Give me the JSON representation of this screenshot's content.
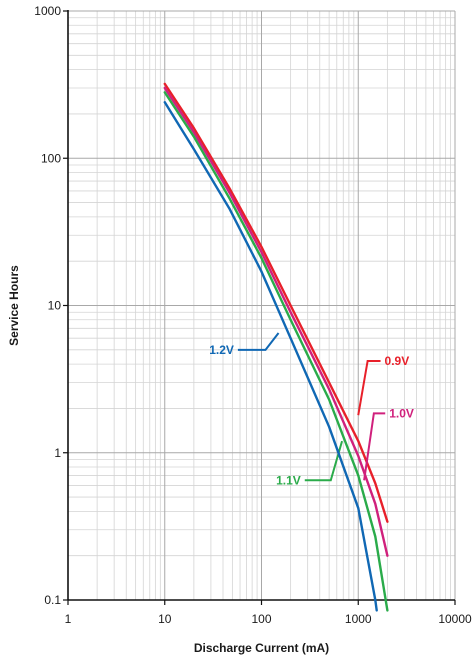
{
  "chart_data": {
    "type": "line",
    "xlabel": "Discharge Current (mA)",
    "ylabel": "Service Hours",
    "xscale": "log",
    "yscale": "log",
    "xlim": [
      1,
      10000
    ],
    "ylim": [
      0.1,
      1000
    ],
    "grid": true,
    "x_ticks": [
      {
        "value": 1,
        "label": "1"
      },
      {
        "value": 10,
        "label": "10"
      },
      {
        "value": 100,
        "label": "100"
      },
      {
        "value": 1000,
        "label": "1000"
      },
      {
        "value": 10000,
        "label": "10000"
      }
    ],
    "y_ticks": [
      {
        "value": 0.1,
        "label": "0.1"
      },
      {
        "value": 1,
        "label": "1"
      },
      {
        "value": 10,
        "label": "10"
      },
      {
        "value": 100,
        "label": "100"
      },
      {
        "value": 1000,
        "label": "1000"
      }
    ],
    "series": [
      {
        "name": "0.9V",
        "color": "#e8202a",
        "points": [
          [
            10,
            320
          ],
          [
            20,
            160
          ],
          [
            47,
            62
          ],
          [
            100,
            25
          ],
          [
            200,
            10
          ],
          [
            500,
            3.0
          ],
          [
            1000,
            1.2
          ],
          [
            1500,
            0.62
          ],
          [
            2000,
            0.34
          ]
        ],
        "callout": {
          "anchor": [
            1000,
            1.8
          ],
          "elbow": [
            1250,
            4.2
          ],
          "label_at": [
            1700,
            4.2
          ],
          "side": "right"
        }
      },
      {
        "name": "1.0V",
        "color": "#d0207c",
        "points": [
          [
            10,
            300
          ],
          [
            20,
            150
          ],
          [
            47,
            58
          ],
          [
            100,
            23
          ],
          [
            200,
            9.0
          ],
          [
            500,
            2.7
          ],
          [
            1000,
            0.95
          ],
          [
            1500,
            0.45
          ],
          [
            2000,
            0.2
          ]
        ],
        "callout": {
          "anchor": [
            1150,
            0.65
          ],
          "elbow": [
            1450,
            1.85
          ],
          "label_at": [
            1900,
            1.85
          ],
          "side": "right"
        }
      },
      {
        "name": "1.1V",
        "color": "#2aab4a",
        "points": [
          [
            10,
            280
          ],
          [
            20,
            140
          ],
          [
            47,
            53
          ],
          [
            100,
            21
          ],
          [
            200,
            8.0
          ],
          [
            500,
            2.3
          ],
          [
            1000,
            0.7
          ],
          [
            1500,
            0.27
          ],
          [
            2000,
            0.085
          ]
        ],
        "callout": {
          "anchor": [
            680,
            1.2
          ],
          "elbow": [
            520,
            0.65
          ],
          "label_at": [
            280,
            0.65
          ],
          "side": "left"
        }
      },
      {
        "name": "1.2V",
        "color": "#1068b4",
        "points": [
          [
            10,
            240
          ],
          [
            20,
            115
          ],
          [
            47,
            45
          ],
          [
            100,
            17
          ],
          [
            200,
            6.0
          ],
          [
            500,
            1.5
          ],
          [
            1000,
            0.42
          ],
          [
            1500,
            0.1
          ],
          [
            1550,
            0.085
          ]
        ],
        "callout": {
          "anchor": [
            150,
            6.5
          ],
          "elbow": [
            110,
            5.0
          ],
          "label_at": [
            57,
            5.0
          ],
          "side": "left"
        }
      }
    ]
  }
}
